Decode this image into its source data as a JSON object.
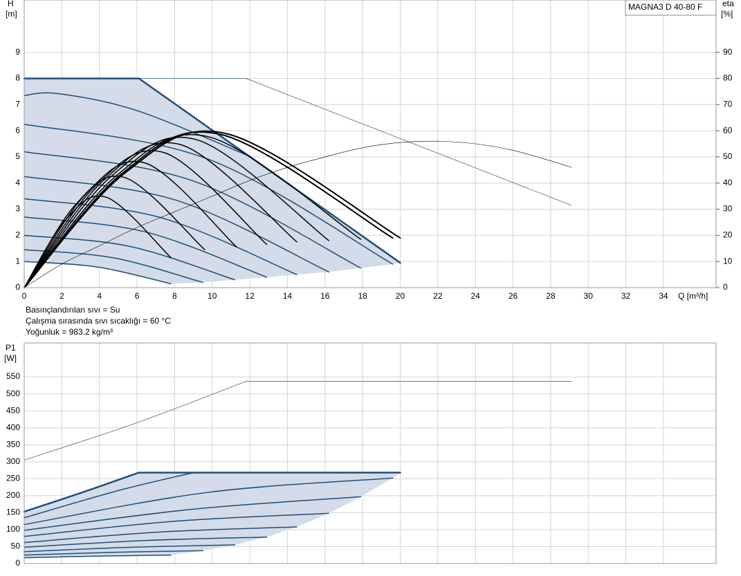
{
  "chart_data": [
    {
      "type": "line",
      "title": "MAGNA3 D 40-80 F",
      "ylabel": "H",
      "yunit": "[m]",
      "y2label": "eta",
      "y2unit": "[%]",
      "xlabel": "Q [m³/h]",
      "annotations": [
        "Basınçlandırılan sıvı = Su",
        "Çalışma sırasında sıvı sıcaklığı = 60 °C",
        "Yoğunluk = 983.2 kg/m³"
      ],
      "xlim": [
        0,
        36.8
      ],
      "xticks": [
        0,
        2,
        4,
        6,
        8,
        10,
        12,
        14,
        16,
        18,
        20,
        22,
        24,
        26,
        28,
        30,
        32,
        34
      ],
      "show_xtick_labels": true,
      "ylim": [
        0,
        11
      ],
      "yticks": [
        0,
        1,
        2,
        3,
        4,
        5,
        6,
        7,
        8,
        9
      ],
      "y2lim": [
        0,
        110
      ],
      "y2ticks": [
        0,
        10,
        20,
        30,
        40,
        50,
        60,
        70,
        80,
        90
      ],
      "grid": true,
      "series": [
        {
          "type": "area",
          "color": "#d3dce8",
          "x": [
            0,
            6.1,
            20,
            19.6,
            17.9,
            16.2,
            14.5,
            12.9,
            11.2,
            9.5,
            7.8,
            3.9,
            0
          ],
          "values": [
            8,
            8,
            0.95,
            0.9,
            0.75,
            0.6,
            0.5,
            0.4,
            0.3,
            0.2,
            0.15,
            0.79,
            1.0
          ]
        },
        {
          "color": "#1f4e79",
          "line_width": 1.5,
          "smooth": true,
          "x": [
            0,
            3.9,
            7.8
          ],
          "values": [
            1.0,
            0.79,
            0.15
          ]
        },
        {
          "color": "#1f4e79",
          "line_width": 1.5,
          "smooth": true,
          "x": [
            0,
            4.75,
            9.5
          ],
          "values": [
            1.45,
            1.14,
            0.2
          ]
        },
        {
          "color": "#1f4e79",
          "line_width": 1.5,
          "smooth": true,
          "x": [
            0,
            5.6,
            11.2
          ],
          "values": [
            2.0,
            1.58,
            0.3
          ]
        },
        {
          "color": "#1f4e79",
          "line_width": 1.5,
          "smooth": true,
          "x": [
            0,
            6.45,
            12.9
          ],
          "values": [
            2.7,
            2.13,
            0.4
          ]
        },
        {
          "color": "#1f4e79",
          "line_width": 1.5,
          "smooth": true,
          "x": [
            0,
            7.25,
            14.5
          ],
          "values": [
            3.4,
            2.68,
            0.5
          ]
        },
        {
          "color": "#1f4e79",
          "line_width": 1.5,
          "smooth": true,
          "x": [
            0,
            8.1,
            16.2
          ],
          "values": [
            4.25,
            3.34,
            0.6
          ]
        },
        {
          "color": "#1f4e79",
          "line_width": 1.5,
          "smooth": true,
          "x": [
            0,
            8.95,
            17.9
          ],
          "values": [
            5.2,
            4.09,
            0.75
          ]
        },
        {
          "color": "#1f4e79",
          "line_width": 1.5,
          "smooth": true,
          "x": [
            0,
            9.8,
            19.6
          ],
          "values": [
            6.25,
            4.91,
            0.9
          ]
        },
        {
          "color": "#1f4e79",
          "line_width": 1.5,
          "smooth": true,
          "x": [
            0,
            1.8,
            6,
            12
          ],
          "values": [
            7.35,
            7.42,
            6.77,
            5.02
          ]
        },
        {
          "color": "#4a6a8a",
          "line_width": 0.8,
          "smooth": false,
          "x": [
            0,
            11.8,
            29.1
          ],
          "values": [
            8,
            8,
            3.15
          ]
        },
        {
          "color": "#1f4e79",
          "line_width": 2.5,
          "smooth": false,
          "x": [
            0,
            6.1,
            20
          ],
          "values": [
            8,
            8,
            0.95
          ]
        },
        {
          "color": "#000000",
          "line_width": 1.5,
          "smooth": true,
          "x": [
            0,
            2.2,
            4.4,
            7.8
          ],
          "values": [
            0,
            2.59,
            3.45,
            1.15
          ]
        },
        {
          "color": "#000000",
          "line_width": 1.5,
          "smooth": true,
          "x": [
            0,
            2.7,
            5.4,
            9.6
          ],
          "values": [
            0,
            3.15,
            4.2,
            1.45
          ]
        },
        {
          "color": "#000000",
          "line_width": 1.5,
          "smooth": true,
          "x": [
            0,
            3.25,
            6.5,
            11.3
          ],
          "values": [
            0,
            3.56,
            4.75,
            1.55
          ]
        },
        {
          "color": "#000000",
          "line_width": 1.5,
          "smooth": true,
          "x": [
            0,
            3.75,
            7.5,
            12.9
          ],
          "values": [
            0,
            3.86,
            5.15,
            1.65
          ]
        },
        {
          "color": "#000000",
          "line_width": 1.5,
          "smooth": true,
          "x": [
            0,
            4.2,
            8.4,
            14.5
          ],
          "values": [
            0,
            4.09,
            5.45,
            1.75
          ]
        },
        {
          "color": "#000000",
          "line_width": 1.5,
          "smooth": true,
          "x": [
            0,
            4.6,
            9.2,
            16.2
          ],
          "values": [
            0,
            4.24,
            5.65,
            1.8
          ]
        },
        {
          "color": "#000000",
          "line_width": 1.5,
          "smooth": true,
          "x": [
            0,
            4.95,
            9.9,
            17.9
          ],
          "values": [
            0,
            4.31,
            5.75,
            1.85
          ]
        },
        {
          "color": "#000000",
          "line_width": 2,
          "smooth": true,
          "x": [
            0,
            5.25,
            10.5,
            19.6
          ],
          "values": [
            0,
            4.39,
            5.85,
            1.9
          ]
        },
        {
          "color": "#000000",
          "line_width": 2,
          "smooth": true,
          "x": [
            0,
            5.4,
            10.8,
            20
          ],
          "values": [
            0,
            4.41,
            5.88,
            1.9
          ]
        },
        {
          "color": "#000000",
          "line_width": 0.6,
          "smooth": true,
          "axis": "y2",
          "x": [
            0,
            2,
            4,
            6,
            8,
            10,
            12,
            14,
            16,
            18,
            20,
            22,
            24,
            26,
            28,
            29.1
          ],
          "values": [
            0,
            9,
            16,
            23,
            29,
            35,
            41,
            46,
            50,
            53.5,
            55.5,
            56,
            55,
            52.5,
            48.5,
            46
          ]
        }
      ]
    },
    {
      "type": "line",
      "ylabel": "P1",
      "yunit": "[W]",
      "xlim": [
        0,
        36.8
      ],
      "xticks": [
        0,
        2,
        4,
        6,
        8,
        10,
        12,
        14,
        16,
        18,
        20,
        22,
        24,
        26,
        28,
        30,
        32,
        34
      ],
      "show_xtick_labels": false,
      "ylim": [
        0,
        650
      ],
      "yticks": [
        0,
        50,
        100,
        150,
        200,
        250,
        300,
        350,
        400,
        450,
        500,
        550
      ],
      "grid": true,
      "series": [
        {
          "type": "area",
          "color": "#d3dce8",
          "x": [
            0,
            3,
            6.1,
            20,
            19.6,
            17.9,
            16.2,
            14.5,
            12.9,
            11.2,
            9.5,
            7.8,
            0
          ],
          "values": [
            153,
            208,
            268,
            268,
            252,
            197,
            148,
            108,
            78,
            55,
            38,
            25,
            17
          ]
        },
        {
          "color": "#1f4e79",
          "line_width": 1.5,
          "smooth": true,
          "x": [
            0,
            3.9,
            7.8
          ],
          "values": [
            17,
            22,
            25
          ]
        },
        {
          "color": "#1f4e79",
          "line_width": 1.5,
          "smooth": true,
          "x": [
            0,
            4.75,
            9.5
          ],
          "values": [
            25,
            33,
            38
          ]
        },
        {
          "color": "#1f4e79",
          "line_width": 1.5,
          "smooth": true,
          "x": [
            0,
            5.6,
            11.2
          ],
          "values": [
            35,
            48,
            55
          ]
        },
        {
          "color": "#1f4e79",
          "line_width": 1.5,
          "smooth": true,
          "x": [
            0,
            6.45,
            12.9
          ],
          "values": [
            48,
            68,
            78
          ]
        },
        {
          "color": "#1f4e79",
          "line_width": 1.5,
          "smooth": true,
          "x": [
            0,
            7.25,
            14.5
          ],
          "values": [
            62,
            93,
            108
          ]
        },
        {
          "color": "#1f4e79",
          "line_width": 1.5,
          "smooth": true,
          "x": [
            0,
            8.1,
            16.2
          ],
          "values": [
            80,
            125,
            148
          ]
        },
        {
          "color": "#1f4e79",
          "line_width": 1.5,
          "smooth": true,
          "x": [
            0,
            8.95,
            17.9
          ],
          "values": [
            98,
            160,
            197
          ]
        },
        {
          "color": "#1f4e79",
          "line_width": 1.5,
          "smooth": true,
          "x": [
            0,
            9.8,
            19.6
          ],
          "values": [
            115,
            210,
            252
          ]
        },
        {
          "color": "#1f4e79",
          "line_width": 1.5,
          "smooth": true,
          "x": [
            0,
            5,
            9
          ],
          "values": [
            135,
            215,
            268
          ]
        },
        {
          "color": "#4a6a8a",
          "line_width": 0.8,
          "smooth": true,
          "x": [
            0,
            6,
            11.8
          ],
          "values": [
            305,
            415,
            537
          ]
        },
        {
          "color": "#4a6a8a",
          "line_width": 0.8,
          "smooth": false,
          "x": [
            11.8,
            29.1
          ],
          "values": [
            537,
            537
          ]
        },
        {
          "color": "#1f4e79",
          "line_width": 2.5,
          "smooth": true,
          "x": [
            0,
            3,
            6.1
          ],
          "values": [
            153,
            208,
            268
          ]
        },
        {
          "color": "#1f4e79",
          "line_width": 2.5,
          "smooth": false,
          "x": [
            6.1,
            20
          ],
          "values": [
            268,
            268
          ]
        }
      ]
    }
  ]
}
